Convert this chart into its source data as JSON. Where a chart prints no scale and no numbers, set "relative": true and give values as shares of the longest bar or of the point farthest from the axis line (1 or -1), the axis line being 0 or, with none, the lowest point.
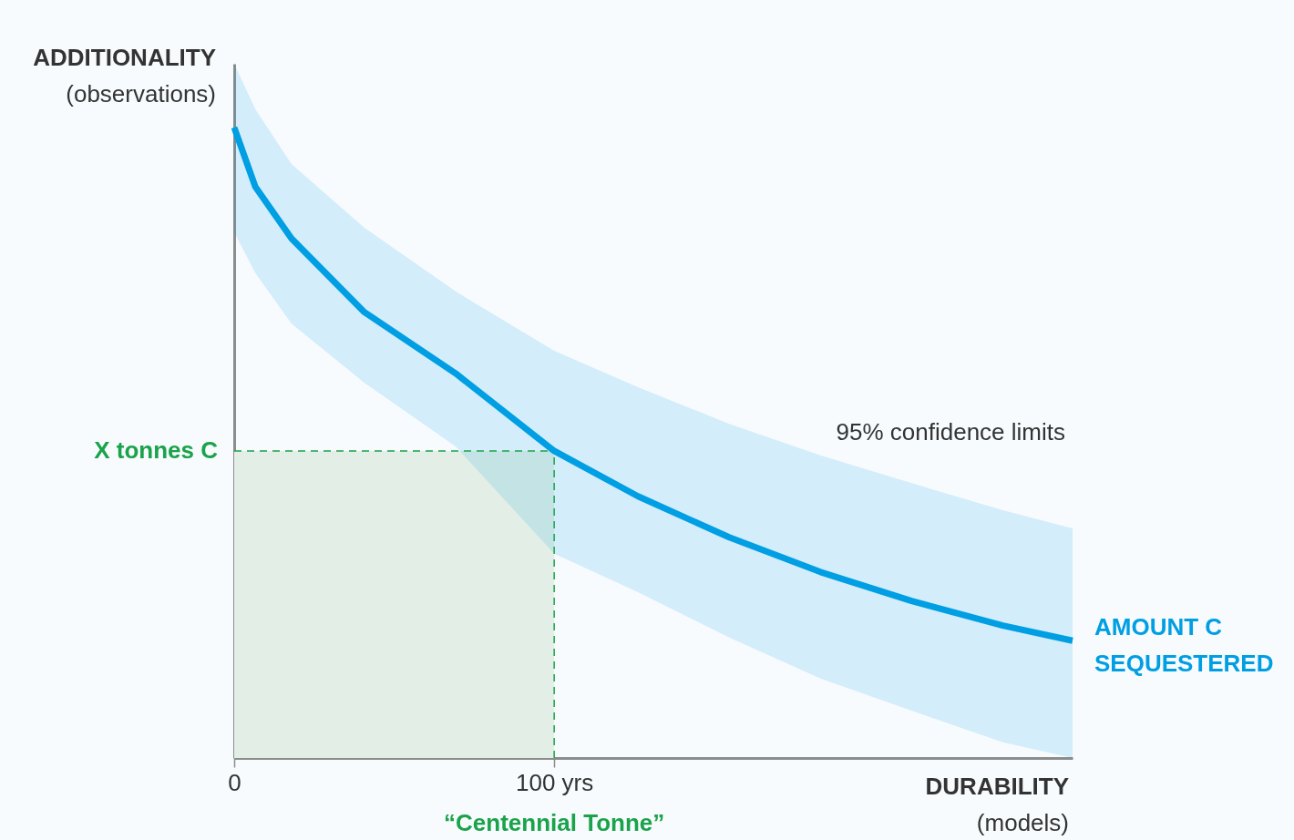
{
  "chart_data": {
    "type": "line",
    "relative": true,
    "xlabel": "DURABILITY\n(models)",
    "ylabel": "ADDITIONALITY\n(observations)",
    "x": [
      0,
      6.6,
      17.9,
      40.7,
      69.2,
      100,
      126.2,
      154.7,
      183.2,
      211.7,
      240.2,
      262
    ],
    "xlim": [
      0,
      262
    ],
    "xticks": [
      0,
      {
        "value": 100,
        "label": "100 yrs"
      }
    ],
    "series": [
      {
        "name": "AMOUNT C\nSEQUESTERED",
        "color": "#009fe3",
        "values": [
          1,
          0.906,
          0.824,
          0.707,
          0.61,
          0.487,
          0.415,
          0.35,
          0.295,
          0.249,
          0.21,
          0.186
        ],
        "lower": [
          0.834,
          0.769,
          0.689,
          0.595,
          0.494,
          0.324,
          0.263,
          0.191,
          0.126,
          0.075,
          0.025,
          0
        ],
        "upper": [
          1.101,
          1.029,
          0.942,
          0.841,
          0.74,
          0.646,
          0.588,
          0.53,
          0.48,
          0.436,
          0.393,
          0.364
        ]
      }
    ],
    "bands": [
      {
        "axis": "x",
        "from": 0,
        "to": 100,
        "color": "#e3efe6"
      }
    ],
    "ref_lines": [
      {
        "axis": "y",
        "value": 0.487,
        "label": "X tonnes C",
        "color": "#1aa34a",
        "line_style": "dashed"
      },
      {
        "axis": "x",
        "value": 100,
        "label": "“Centennial Tonne”",
        "color": "#1aa34a",
        "line_style": "dashed"
      }
    ],
    "annotations": [
      "95% confidence limits"
    ],
    "grid": false,
    "legend": false,
    "line_style": "solid",
    "marker": "none"
  }
}
